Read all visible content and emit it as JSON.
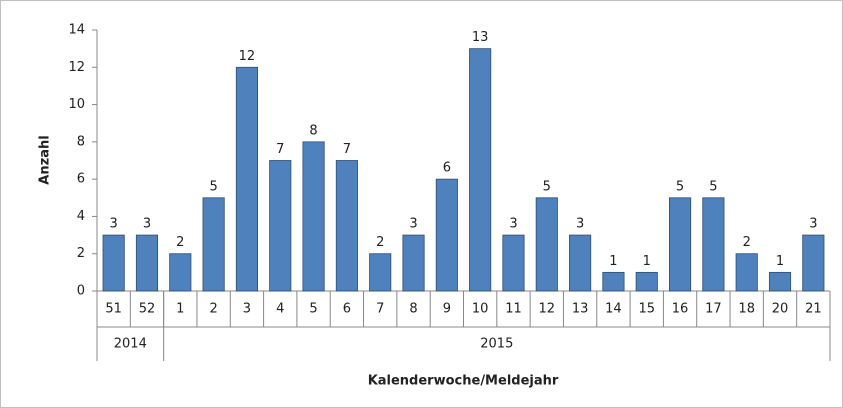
{
  "chart_data": {
    "type": "bar",
    "y_label": "Anzahl",
    "x_label": "Kalenderwoche/Meldejahr",
    "color": "#4f81bd",
    "ylim": [
      0,
      14
    ],
    "yticks": [
      0,
      2,
      4,
      6,
      8,
      10,
      12,
      14
    ],
    "grid": false,
    "value_labels_shown": true,
    "groups": [
      {
        "label": "2014",
        "categories": [
          "51",
          "52"
        ],
        "values": [
          3,
          3
        ]
      },
      {
        "label": "2015",
        "categories": [
          "1",
          "2",
          "3",
          "4",
          "5",
          "6",
          "7",
          "8",
          "9",
          "10",
          "11",
          "12",
          "13",
          "14",
          "15",
          "16",
          "17",
          "18",
          "20",
          "21"
        ],
        "values": [
          2,
          5,
          12,
          7,
          8,
          7,
          2,
          3,
          6,
          13,
          3,
          5,
          3,
          1,
          1,
          5,
          5,
          2,
          1,
          3
        ]
      }
    ]
  }
}
